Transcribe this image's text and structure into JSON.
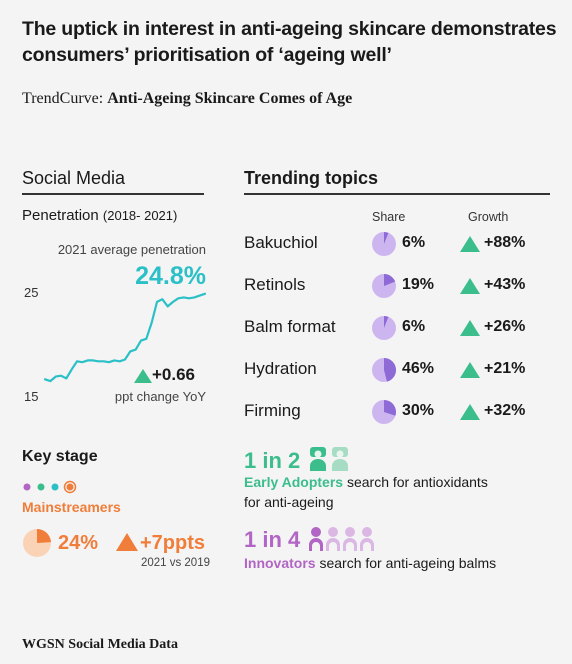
{
  "headline": "The uptick in interest in anti-ageing skincare demonstrates consumers’ prioritisation of ‘ageing well’",
  "subtitle": {
    "prefix": "TrendCurve:",
    "title": "Anti-Ageing Skincare Comes of Age"
  },
  "social_media": {
    "section_title": "Social Media",
    "penetration_label": "Penetration",
    "penetration_range": "(2018- 2021)",
    "avg_label": "2021 average penetration",
    "avg_value": "24.8%",
    "tick_top": "25",
    "tick_bottom": "15",
    "delta_value": "+0.66",
    "delta_label": "ppt change YoY"
  },
  "key_stage": {
    "title": "Key stage",
    "stage_name": "Mainstreamers",
    "share_value": "24%",
    "change_value": "+7ppts",
    "comparison": "2021 vs 2019",
    "share_fraction": 0.24,
    "dots": [
      "#b165c4",
      "#3bbd8c",
      "#2bc0c7",
      "#f07d3a"
    ],
    "active_dot": 3
  },
  "trending": {
    "section_title": "Trending topics",
    "share_header": "Share",
    "growth_header": "Growth",
    "topics": [
      {
        "label": "Bakuchiol",
        "share": "6%",
        "growth": "+88%"
      },
      {
        "label": "Retinols",
        "share": "19%",
        "growth": "+43%"
      },
      {
        "label": "Balm format",
        "share": "6%",
        "growth": "+26%"
      },
      {
        "label": "Hydration",
        "share": "46%",
        "growth": "+21%"
      },
      {
        "label": "Firming",
        "share": "30%",
        "growth": "+32%"
      }
    ]
  },
  "early_adopters": {
    "ratio": "1 in 2",
    "segment": "Early Adopters",
    "text_1": "search for antioxidants",
    "text_2": "for anti-ageing"
  },
  "innovators": {
    "ratio": "1 in 4",
    "segment": "Innovators",
    "text": "search for anti-ageing balms"
  },
  "source": "WGSN Social Media Data",
  "colors": {
    "teal": "#2bc0c7",
    "green": "#3bbd8c",
    "orange": "#f07d3a",
    "purple": "#b165c4",
    "lavender": "#cdb6ef",
    "violet": "#8e6ad6"
  },
  "chart_data": {
    "type": "line",
    "title": "Penetration",
    "ylim": [
      15,
      25
    ],
    "yticks": [
      25,
      15
    ],
    "series": [
      {
        "values": [
          15.3,
          15.1,
          15.6,
          15.7,
          15.4,
          16.4,
          17.3,
          17.2,
          17.4,
          17.4,
          17.3,
          17.3,
          17.2,
          17.4,
          17.3,
          17.5,
          18.4,
          18.6,
          19.6,
          19.8,
          21.6,
          23.9,
          24.2,
          23.4,
          23.9,
          24.3,
          24.4,
          24.3,
          24.4,
          24.6,
          24.8
        ]
      }
    ]
  }
}
